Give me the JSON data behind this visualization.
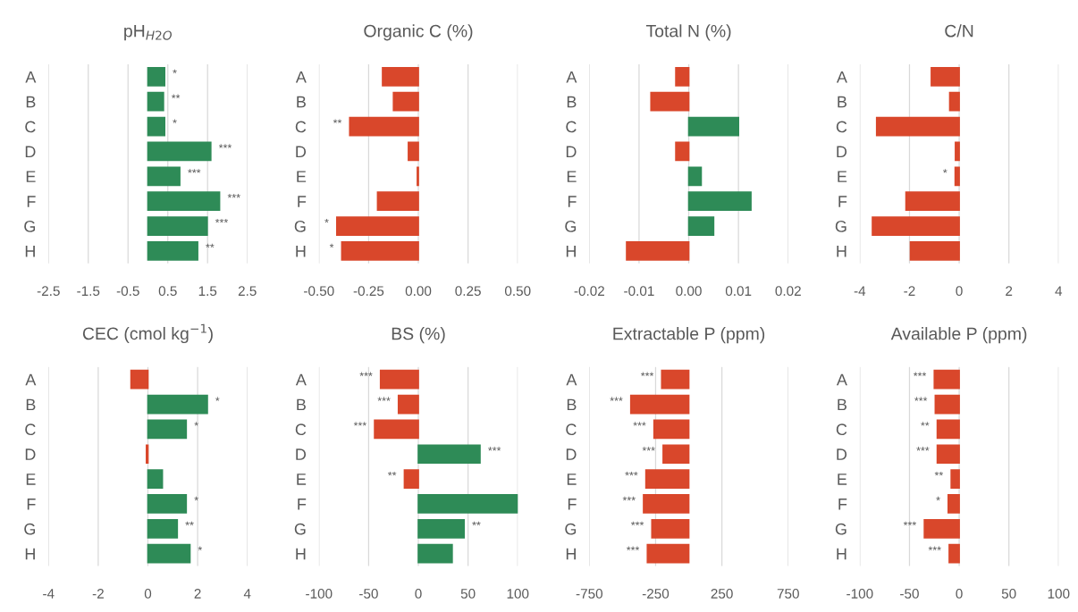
{
  "chart_data": [
    {
      "type": "bar",
      "orientation": "horizontal",
      "title": "pH$_{H2O}$",
      "categories": [
        "A",
        "B",
        "C",
        "D",
        "E",
        "F",
        "G",
        "H"
      ],
      "values": [
        0.42,
        0.39,
        0.42,
        1.58,
        0.8,
        1.8,
        1.49,
        1.25
      ],
      "colors": [
        "#2e8b57",
        "#2e8b57",
        "#2e8b57",
        "#2e8b57",
        "#2e8b57",
        "#2e8b57",
        "#2e8b57",
        "#2e8b57"
      ],
      "value_labels": [
        "*",
        "**",
        "*",
        "***",
        "***",
        "***",
        "***",
        "**"
      ],
      "xlim": [
        -2.5,
        2.5
      ],
      "xticks": [
        -2.5,
        -1.5,
        -0.5,
        0.5,
        1.5,
        2.5
      ],
      "grid": "x"
    },
    {
      "type": "bar",
      "orientation": "horizontal",
      "title": "Organic C (%)",
      "categories": [
        "A",
        "B",
        "C",
        "D",
        "E",
        "F",
        "G",
        "H"
      ],
      "values": [
        -0.18,
        -0.125,
        -0.345,
        -0.05,
        -0.005,
        -0.205,
        -0.41,
        -0.385
      ],
      "colors": [
        "#d9472b",
        "#d9472b",
        "#d9472b",
        "#d9472b",
        "#d9472b",
        "#d9472b",
        "#d9472b",
        "#d9472b"
      ],
      "value_labels": [
        null,
        null,
        "**",
        null,
        null,
        null,
        "*",
        "*"
      ],
      "xlim": [
        -0.5,
        0.5
      ],
      "xticks": [
        {
          "value": -0.5,
          "label": "-0.50"
        },
        {
          "value": -0.25,
          "label": "-0.25"
        },
        {
          "value": 0,
          "label": "0.00"
        },
        {
          "value": 0.25,
          "label": "0.25"
        },
        {
          "value": 0.5,
          "label": "0.50"
        }
      ],
      "grid": "x"
    },
    {
      "type": "bar",
      "orientation": "horizontal",
      "title": "Total N (%)",
      "categories": [
        "A",
        "B",
        "C",
        "D",
        "E",
        "F",
        "G",
        "H"
      ],
      "values": [
        -0.0026,
        -0.0076,
        0.01,
        -0.0026,
        0.0025,
        0.0125,
        0.005,
        -0.0125
      ],
      "colors": [
        "#d9472b",
        "#d9472b",
        "#2e8b57",
        "#d9472b",
        "#2e8b57",
        "#2e8b57",
        "#2e8b57",
        "#d9472b"
      ],
      "xlim": [
        -0.02,
        0.02
      ],
      "xticks": [
        {
          "value": -0.02,
          "label": "-0.02"
        },
        {
          "value": -0.01,
          "label": "-0.01"
        },
        {
          "value": 0,
          "label": "0.00"
        },
        {
          "value": 0.01,
          "label": "0.01"
        },
        {
          "value": 0.02,
          "label": "0.02"
        }
      ],
      "grid": "x"
    },
    {
      "type": "bar",
      "orientation": "horizontal",
      "title": "C/N",
      "categories": [
        "A",
        "B",
        "C",
        "D",
        "E",
        "F",
        "G",
        "H"
      ],
      "values": [
        -1.12,
        -0.38,
        -3.32,
        -0.15,
        -0.16,
        -2.14,
        -3.49,
        -1.96
      ],
      "colors": [
        "#d9472b",
        "#d9472b",
        "#d9472b",
        "#d9472b",
        "#d9472b",
        "#d9472b",
        "#d9472b",
        "#d9472b"
      ],
      "value_labels": [
        null,
        null,
        null,
        null,
        "*",
        null,
        null,
        null
      ],
      "xlim": [
        -4,
        4
      ],
      "xticks": [
        -4,
        -2,
        0,
        2,
        4
      ],
      "grid": "x"
    },
    {
      "type": "bar",
      "orientation": "horizontal",
      "title": "CEC (cmol kg$^{−1}$)",
      "categories": [
        "A",
        "B",
        "C",
        "D",
        "E",
        "F",
        "G",
        "H"
      ],
      "values": [
        -0.68,
        2.39,
        1.54,
        -0.06,
        0.58,
        1.54,
        1.18,
        1.69
      ],
      "colors": [
        "#d9472b",
        "#2e8b57",
        "#2e8b57",
        "#d9472b",
        "#2e8b57",
        "#2e8b57",
        "#2e8b57",
        "#2e8b57"
      ],
      "value_labels": [
        null,
        "*",
        "*",
        null,
        null,
        "*",
        "**",
        "*"
      ],
      "xlim": [
        -4,
        4
      ],
      "xticks": [
        -4,
        -2,
        0,
        2,
        4
      ],
      "grid": "x"
    },
    {
      "type": "bar",
      "orientation": "horizontal",
      "title": "BS (%)",
      "categories": [
        "A",
        "B",
        "C",
        "D",
        "E",
        "F",
        "G",
        "H"
      ],
      "values": [
        -38,
        -20,
        -44,
        62,
        -14,
        100,
        46,
        34
      ],
      "colors": [
        "#d9472b",
        "#d9472b",
        "#d9472b",
        "#2e8b57",
        "#d9472b",
        "#2e8b57",
        "#2e8b57",
        "#2e8b57"
      ],
      "value_labels": [
        "***",
        "***",
        "***",
        "***",
        "**",
        null,
        "**",
        null
      ],
      "xlim": [
        -100,
        100
      ],
      "xticks": [
        -100,
        -50,
        0,
        50,
        100
      ],
      "grid": "x"
    },
    {
      "type": "bar",
      "orientation": "horizontal",
      "title": "Extractable P (ppm)",
      "categories": [
        "A",
        "B",
        "C",
        "D",
        "E",
        "F",
        "G",
        "H"
      ],
      "values": [
        -204,
        -437,
        -262,
        -193,
        -323,
        -341,
        -278,
        -312
      ],
      "colors": [
        "#d9472b",
        "#d9472b",
        "#d9472b",
        "#d9472b",
        "#d9472b",
        "#d9472b",
        "#d9472b",
        "#d9472b"
      ],
      "value_labels": [
        "***",
        "***",
        "***",
        "***",
        "***",
        "***",
        "***",
        "***"
      ],
      "xlim": [
        -750,
        750
      ],
      "xticks": [
        -750,
        -250,
        250,
        750
      ],
      "grid": "x"
    },
    {
      "type": "bar",
      "orientation": "horizontal",
      "title": "Available P (ppm)",
      "categories": [
        "A",
        "B",
        "C",
        "D",
        "E",
        "F",
        "G",
        "H"
      ],
      "values": [
        -25,
        -24,
        -22,
        -22,
        -8,
        -11,
        -35,
        -10
      ],
      "colors": [
        "#d9472b",
        "#d9472b",
        "#d9472b",
        "#d9472b",
        "#d9472b",
        "#d9472b",
        "#d9472b",
        "#d9472b"
      ],
      "value_labels": [
        "***",
        "***",
        "**",
        "***",
        "**",
        "*",
        "***",
        "***"
      ],
      "xlim": [
        -100,
        100
      ],
      "xticks": [
        -100,
        -50,
        0,
        50,
        100
      ],
      "grid": "x"
    }
  ]
}
